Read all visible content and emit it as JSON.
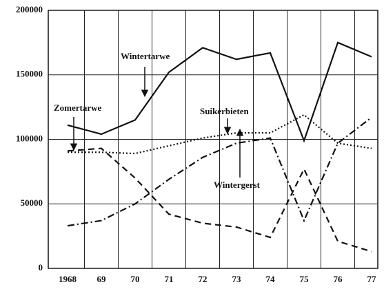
{
  "chart_data": {
    "type": "line",
    "categories": [
      "1968",
      "69",
      "70",
      "71",
      "72",
      "73",
      "74",
      "75",
      "76",
      "77"
    ],
    "series": [
      {
        "name": "Wintertarwe",
        "color": "#111111",
        "style": "solid",
        "values": [
          111000,
          104000,
          115000,
          152000,
          171000,
          162000,
          167000,
          99000,
          175000,
          164000
        ]
      },
      {
        "name": "Suikerbieten",
        "color": "#111111",
        "style": "dotted",
        "values": [
          90000,
          90000,
          89000,
          95000,
          101000,
          105000,
          105000,
          119000,
          97000,
          93000
        ]
      },
      {
        "name": "Zomertarwe",
        "color": "#111111",
        "style": "dashed",
        "values": [
          91000,
          93000,
          70000,
          42000,
          35000,
          32000,
          24000,
          77000,
          21000,
          13000
        ]
      },
      {
        "name": "Wintergerst",
        "color": "#111111",
        "style": "dashdot",
        "values": [
          33000,
          37000,
          50000,
          69000,
          86000,
          97000,
          101000,
          37000,
          97000,
          117000
        ]
      }
    ],
    "ylim": [
      0,
      200000
    ],
    "yticks": [
      0,
      50000,
      100000,
      150000,
      200000
    ],
    "grid": true
  }
}
